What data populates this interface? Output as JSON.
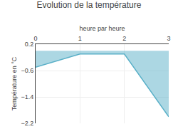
{
  "chart_data": {
    "type": "area",
    "title": "Evolution de la température",
    "xlabel": "heure par heure",
    "ylabel": "Température en °C",
    "x": [
      0,
      1,
      2,
      3
    ],
    "values": [
      -0.5,
      -0.1,
      -0.1,
      -2.0
    ],
    "color": "#5ab0c8",
    "xlim": [
      0,
      3
    ],
    "ylim": [
      -2.2,
      0.2
    ],
    "xticks": [
      0,
      1,
      2,
      3
    ],
    "yticks": [
      0.2,
      -0.6,
      -1.4,
      -2.2
    ],
    "grid": true
  }
}
